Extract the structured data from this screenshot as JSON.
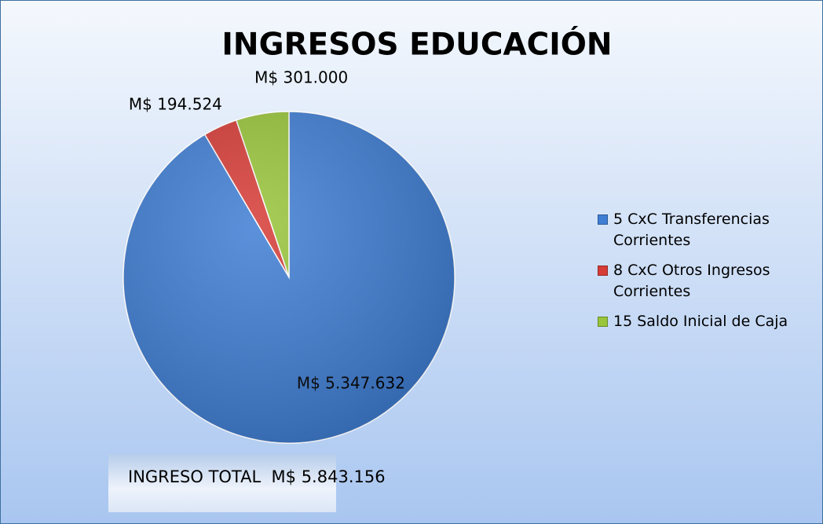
{
  "chart_data": {
    "type": "pie",
    "title": "INGRESOS EDUCACIÓN",
    "categories": [
      "5 CxC Transferencias Corrientes",
      "8 CxC Otros Ingresos Corrientes",
      "15 Saldo Inicial de Caja"
    ],
    "values": [
      5347632,
      194524,
      301000
    ],
    "value_labels": [
      "M$ 5.347.632",
      "M$ 194.524",
      "M$ 301.000"
    ],
    "colors": [
      "#3f7ed4",
      "#d63b36",
      "#98c53a"
    ],
    "legend": "right",
    "annotation": "INGRESO TOTAL  M$ 5.843.156"
  }
}
